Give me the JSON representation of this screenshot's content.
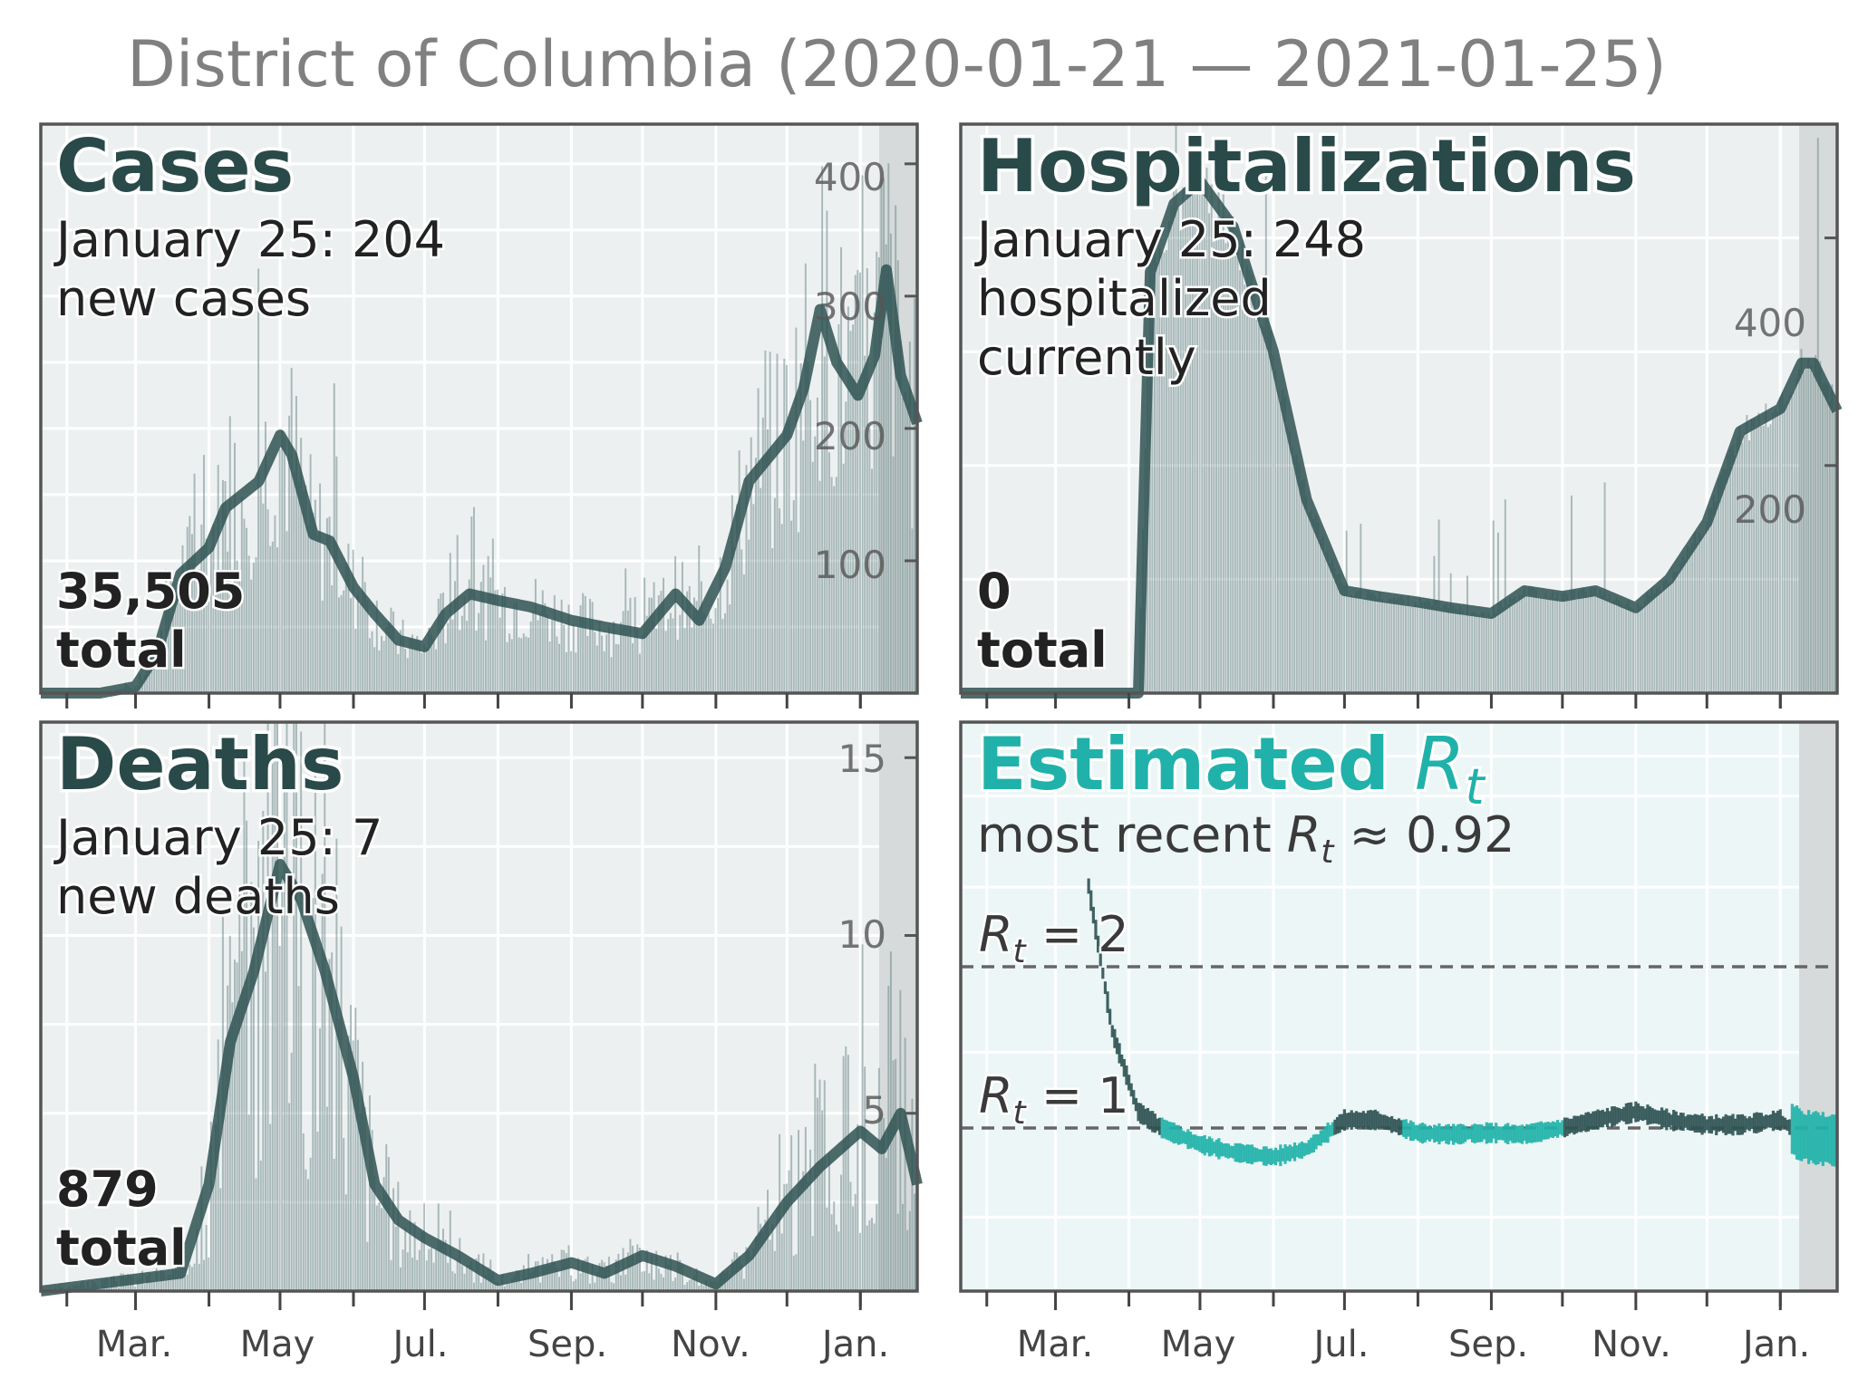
{
  "title": "District of Columbia (2020-01-21 — 2021-01-25)",
  "colors": {
    "dark": "#2f5252",
    "bar": "#6f8b8b",
    "panel_bg": "#edf0f1",
    "rt_bg": "#ecf6f6",
    "teal": "#20b2aa",
    "shade": "#d6dada"
  },
  "x_axis": {
    "tick_labels": [
      "Mar.",
      "May",
      "Jul.",
      "Sep.",
      "Nov.",
      "Jan."
    ]
  },
  "panels": {
    "cases": {
      "heading": "Cases",
      "latest": "January 25: 204",
      "latest2": "new cases",
      "total_value": "35,505",
      "total_word": "total",
      "yticks": [
        "100",
        "200",
        "300",
        "400"
      ]
    },
    "hosp": {
      "heading": "Hospitalizations",
      "latest": "January 25: 248",
      "latest2": "hospitalized",
      "latest3": "currently",
      "total_value": "0",
      "total_word": "total",
      "yticks": [
        "200",
        "400"
      ]
    },
    "deaths": {
      "heading": "Deaths",
      "latest": "January 25: 7",
      "latest2": "new deaths",
      "total_value": "879",
      "total_word": "total",
      "yticks": [
        "5",
        "10",
        "15"
      ]
    },
    "rt": {
      "heading": "Estimated ",
      "heading_sym": "R",
      "heading_sub": "t",
      "recent_prefix": "most recent ",
      "recent_sym": "R",
      "recent_sub": "t",
      "recent_value": " ≈ 0.92",
      "ref2_sym": "R",
      "ref2_sub": "t",
      "ref2_value": " = 2",
      "ref1_sym": "R",
      "ref1_sub": "t",
      "ref1_value": " = 1"
    }
  },
  "chart_data": [
    {
      "type": "bar",
      "name": "cases",
      "title": "Cases",
      "x_dates": [
        "2020-01-21",
        "2020-02-15",
        "2020-03-01",
        "2020-03-10",
        "2020-03-20",
        "2020-04-01",
        "2020-04-08",
        "2020-04-15",
        "2020-04-22",
        "2020-05-01",
        "2020-05-06",
        "2020-05-15",
        "2020-05-22",
        "2020-06-01",
        "2020-06-10",
        "2020-06-20",
        "2020-07-01",
        "2020-07-10",
        "2020-07-20",
        "2020-08-01",
        "2020-08-15",
        "2020-09-01",
        "2020-09-15",
        "2020-10-01",
        "2020-10-15",
        "2020-10-25",
        "2020-11-05",
        "2020-11-15",
        "2020-12-01",
        "2020-12-08",
        "2020-12-15",
        "2020-12-22",
        "2020-12-31",
        "2021-01-07",
        "2021-01-12",
        "2021-01-18",
        "2021-01-25"
      ],
      "smoothed_values": [
        0,
        0,
        5,
        30,
        90,
        110,
        140,
        150,
        160,
        195,
        180,
        120,
        115,
        80,
        60,
        40,
        35,
        60,
        75,
        70,
        65,
        55,
        50,
        45,
        75,
        55,
        95,
        160,
        195,
        230,
        290,
        250,
        225,
        255,
        320,
        240,
        204
      ],
      "ylim": [
        0,
        430
      ],
      "yticks": [
        100,
        200,
        300,
        400
      ],
      "last_value": 204,
      "total": 35505
    },
    {
      "type": "bar",
      "name": "hospitalizations",
      "title": "Hospitalizations",
      "x_dates": [
        "2020-01-21",
        "2020-03-25",
        "2020-04-05",
        "2020-04-10",
        "2020-04-20",
        "2020-05-01",
        "2020-05-15",
        "2020-06-01",
        "2020-06-15",
        "2020-07-01",
        "2020-07-15",
        "2020-08-01",
        "2020-08-15",
        "2020-09-01",
        "2020-09-15",
        "2020-10-01",
        "2020-10-15",
        "2020-11-01",
        "2020-11-15",
        "2020-12-01",
        "2020-12-15",
        "2021-01-01",
        "2021-01-10",
        "2021-01-15",
        "2021-01-25"
      ],
      "smoothed_values": [
        0,
        0,
        0,
        370,
        430,
        450,
        410,
        300,
        170,
        90,
        85,
        80,
        75,
        70,
        90,
        85,
        90,
        75,
        100,
        150,
        230,
        250,
        290,
        290,
        248
      ],
      "ylim": [
        0,
        500
      ],
      "yticks": [
        200,
        400
      ],
      "last_value": 248,
      "total": 0
    },
    {
      "type": "bar",
      "name": "deaths",
      "title": "Deaths",
      "x_dates": [
        "2020-01-21",
        "2020-03-20",
        "2020-04-01",
        "2020-04-10",
        "2020-04-20",
        "2020-05-01",
        "2020-05-10",
        "2020-05-20",
        "2020-06-01",
        "2020-06-10",
        "2020-06-20",
        "2020-07-01",
        "2020-07-15",
        "2020-08-01",
        "2020-08-15",
        "2020-09-01",
        "2020-09-15",
        "2020-10-01",
        "2020-10-15",
        "2020-11-01",
        "2020-11-15",
        "2020-12-01",
        "2020-12-15",
        "2021-01-01",
        "2021-01-10",
        "2021-01-18",
        "2021-01-25"
      ],
      "smoothed_values": [
        0,
        0.5,
        3,
        7,
        9,
        12,
        11,
        9,
        6,
        3,
        2,
        1.5,
        1,
        0.3,
        0.5,
        0.8,
        0.5,
        1,
        0.7,
        0.2,
        1,
        2.5,
        3.5,
        4.5,
        4,
        5,
        3
      ],
      "ylim": [
        0,
        16
      ],
      "yticks": [
        5,
        10,
        15
      ],
      "last_value": 7,
      "total": 879
    },
    {
      "type": "line",
      "name": "estimated_rt",
      "title": "Estimated Rt",
      "x_dates": [
        "2020-03-15",
        "2020-03-25",
        "2020-04-05",
        "2020-04-15",
        "2020-05-01",
        "2020-05-15",
        "2020-06-01",
        "2020-06-15",
        "2020-07-01",
        "2020-07-15",
        "2020-08-01",
        "2020-08-15",
        "2020-09-01",
        "2020-09-15",
        "2020-10-01",
        "2020-10-15",
        "2020-11-01",
        "2020-11-15",
        "2020-12-01",
        "2020-12-15",
        "2021-01-01",
        "2021-01-10",
        "2021-01-25"
      ],
      "values": [
        2.5,
        1.6,
        1.1,
        1.0,
        0.9,
        0.85,
        0.82,
        0.87,
        1.05,
        1.05,
        0.97,
        0.96,
        0.97,
        0.96,
        1.0,
        1.05,
        1.1,
        1.05,
        1.02,
        1.02,
        1.05,
        0.95,
        0.92
      ],
      "reference_lines": [
        1,
        2
      ],
      "last_value": 0.92
    }
  ]
}
